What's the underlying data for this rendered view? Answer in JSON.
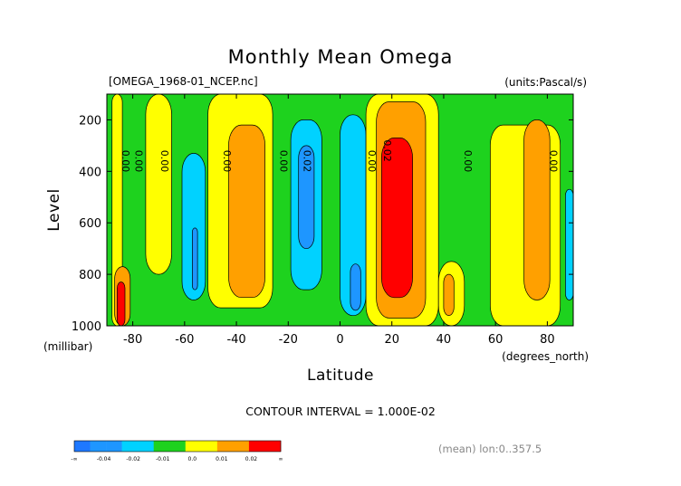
{
  "header": {
    "title": "Monthly Mean Omega",
    "file_label": "[OMEGA_1968-01_NCEP.nc]",
    "units_label": "(units:Pascal/s)"
  },
  "footer": {
    "contour_interval": "CONTOUR INTERVAL = 1.000E-02",
    "mean_label": "(mean) lon:0..357.5"
  },
  "chart_data": {
    "type": "contour",
    "title": "Monthly Mean Omega",
    "xlabel": "Latitude",
    "x_units": "(degrees_north)",
    "ylabel": "Level",
    "y_units": "(millibar)",
    "xlim": [
      -90,
      90
    ],
    "ylim": [
      1000,
      100
    ],
    "x_ticks": [
      -80,
      -60,
      -40,
      -20,
      0,
      20,
      40,
      60,
      80
    ],
    "x_tick_labels": [
      "-80",
      "-60",
      "-40",
      "-20",
      "0",
      "20",
      "40",
      "60",
      "80"
    ],
    "y_ticks": [
      200,
      400,
      600,
      800,
      1000
    ],
    "y_tick_labels": [
      "200",
      "400",
      "600",
      "800",
      "1000"
    ],
    "contour_interval": 0.01,
    "palette": {
      "below_-0.04": "#1e78ff",
      "-0.04_-0.02": "#1e96ff",
      "-0.02_-0.01": "#00d2ff",
      "-0.01_0.0": "#1ed21e",
      "0.0_0.01": "#ffff00",
      "0.01_0.02": "#ffa000",
      "above_0.02": "#ff0000"
    },
    "colorbar": {
      "colors": [
        "#1e78ff",
        "#1e96ff",
        "#1e96ff",
        "#00d2ff",
        "#00d2ff",
        "#1ed21e",
        "#1ed21e",
        "#ffff00",
        "#ffff00",
        "#ffa000",
        "#ffa000",
        "#ff0000",
        "#ff0000"
      ],
      "tick_labels": [
        "-∞",
        "-0.04",
        "-0.02",
        "-0.01",
        "0.0",
        "0.01",
        "0.02",
        "∞"
      ]
    },
    "contour_labels": [
      {
        "text": "0.00",
        "lat": -84,
        "lev": 360
      },
      {
        "text": "0.00",
        "lat": -79,
        "lev": 360
      },
      {
        "text": "0.00",
        "lat": -69,
        "lev": 360
      },
      {
        "text": "0.00",
        "lat": -45,
        "lev": 360
      },
      {
        "text": "0.00",
        "lat": -23,
        "lev": 360
      },
      {
        "text": "0.02",
        "lat": -14,
        "lev": 360
      },
      {
        "text": "0.00",
        "lat": 11,
        "lev": 360
      },
      {
        "text": "0.02",
        "lat": 17,
        "lev": 320
      },
      {
        "text": "0.00",
        "lat": 48,
        "lev": 360
      },
      {
        "text": "0.00",
        "lat": 81,
        "lev": 360
      }
    ],
    "regions": [
      {
        "color": "#ffff00",
        "lat": [
          -88,
          -84
        ],
        "lev": [
          100,
          1000
        ]
      },
      {
        "color": "#ffff00",
        "lat": [
          -75,
          -65
        ],
        "lev": [
          100,
          800
        ]
      },
      {
        "color": "#ffff00",
        "lat": [
          -51,
          -26
        ],
        "lev": [
          100,
          930
        ]
      },
      {
        "color": "#ffa000",
        "lat": [
          -43,
          -29
        ],
        "lev": [
          220,
          890
        ]
      },
      {
        "color": "#00d2ff",
        "lat": [
          -61,
          -52
        ],
        "lev": [
          330,
          900
        ]
      },
      {
        "color": "#1e96ff",
        "lat": [
          -57,
          -55
        ],
        "lev": [
          620,
          860
        ]
      },
      {
        "color": "#00d2ff",
        "lat": [
          -19,
          -7
        ],
        "lev": [
          200,
          860
        ]
      },
      {
        "color": "#1e96ff",
        "lat": [
          -16,
          -10
        ],
        "lev": [
          300,
          700
        ]
      },
      {
        "color": "#00d2ff",
        "lat": [
          0,
          10
        ],
        "lev": [
          180,
          960
        ]
      },
      {
        "color": "#1e96ff",
        "lat": [
          4,
          8
        ],
        "lev": [
          760,
          940
        ]
      },
      {
        "color": "#ffff00",
        "lat": [
          10,
          38
        ],
        "lev": [
          100,
          1000
        ]
      },
      {
        "color": "#ffa000",
        "lat": [
          14,
          33
        ],
        "lev": [
          130,
          970
        ]
      },
      {
        "color": "#ff0000",
        "lat": [
          16,
          28
        ],
        "lev": [
          270,
          890
        ]
      },
      {
        "color": "#ffff00",
        "lat": [
          38,
          48
        ],
        "lev": [
          750,
          1000
        ]
      },
      {
        "color": "#ffa000",
        "lat": [
          40,
          44
        ],
        "lev": [
          800,
          960
        ]
      },
      {
        "color": "#ffff00",
        "lat": [
          58,
          85
        ],
        "lev": [
          220,
          1000
        ]
      },
      {
        "color": "#ffa000",
        "lat": [
          71,
          81
        ],
        "lev": [
          200,
          900
        ]
      },
      {
        "color": "#00d2ff",
        "lat": [
          87,
          90
        ],
        "lev": [
          470,
          900
        ]
      },
      {
        "color": "#ffa000",
        "lat": [
          -87,
          -81
        ],
        "lev": [
          770,
          1000
        ]
      },
      {
        "color": "#ff0000",
        "lat": [
          -86,
          -83
        ],
        "lev": [
          830,
          1000
        ]
      }
    ]
  }
}
